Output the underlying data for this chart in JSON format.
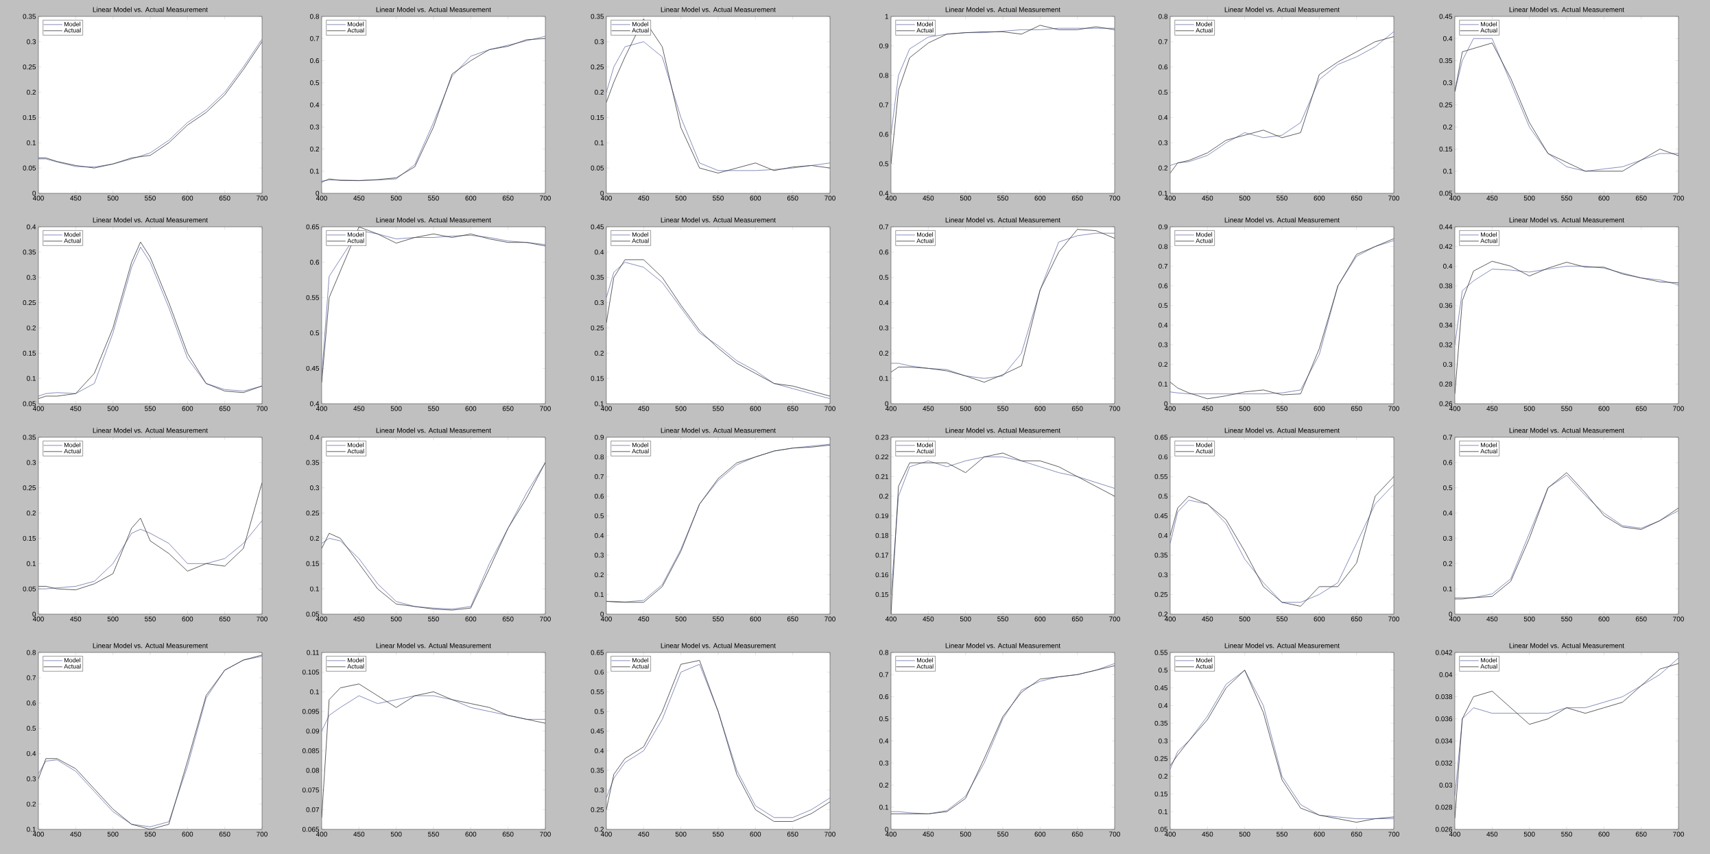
{
  "chart_data": [
    {
      "type": "line",
      "title": "Linear Model vs. Actual Measurement",
      "x": [
        400,
        410,
        425,
        450,
        475,
        500,
        525,
        550,
        575,
        600,
        625,
        650,
        675,
        700
      ],
      "xlim": [
        400,
        700
      ],
      "xticks": [
        400,
        450,
        500,
        550,
        600,
        650,
        700
      ],
      "ylim": [
        0,
        0.35
      ],
      "yticks": [
        0,
        0.05,
        0.1,
        0.15,
        0.2,
        0.25,
        0.3,
        0.35
      ],
      "legend": "top left",
      "series": [
        {
          "name": "Model",
          "color": "#6670a8",
          "values": [
            0.068,
            0.068,
            0.062,
            0.053,
            0.052,
            0.058,
            0.068,
            0.08,
            0.105,
            0.14,
            0.165,
            0.2,
            0.25,
            0.305
          ]
        },
        {
          "name": "Actual",
          "color": "#333333",
          "values": [
            0.07,
            0.07,
            0.063,
            0.055,
            0.05,
            0.058,
            0.07,
            0.075,
            0.1,
            0.135,
            0.16,
            0.195,
            0.245,
            0.3
          ]
        }
      ]
    },
    {
      "type": "line",
      "title": "Linear Model vs. Actual Measurement",
      "x": [
        400,
        410,
        425,
        450,
        475,
        500,
        525,
        550,
        575,
        600,
        625,
        650,
        675,
        700
      ],
      "xlim": [
        400,
        700
      ],
      "xticks": [
        400,
        450,
        500,
        550,
        600,
        650,
        700
      ],
      "ylim": [
        0,
        0.8
      ],
      "yticks": [
        0,
        0.1,
        0.2,
        0.3,
        0.4,
        0.5,
        0.6,
        0.7,
        0.8
      ],
      "legend": "top left",
      "series": [
        {
          "name": "Model",
          "color": "#6670a8",
          "values": [
            0.055,
            0.06,
            0.06,
            0.058,
            0.06,
            0.065,
            0.13,
            0.32,
            0.53,
            0.62,
            0.65,
            0.67,
            0.69,
            0.71
          ]
        },
        {
          "name": "Actual",
          "color": "#333333",
          "values": [
            0.05,
            0.065,
            0.058,
            0.057,
            0.062,
            0.07,
            0.12,
            0.3,
            0.54,
            0.6,
            0.65,
            0.665,
            0.695,
            0.7
          ]
        }
      ]
    },
    {
      "type": "line",
      "title": "Linear Model vs. Actual Measurement",
      "x": [
        400,
        410,
        425,
        450,
        475,
        500,
        525,
        550,
        575,
        600,
        625,
        650,
        675,
        700
      ],
      "xlim": [
        400,
        700
      ],
      "xticks": [
        400,
        450,
        500,
        550,
        600,
        650,
        700
      ],
      "ylim": [
        0,
        0.35
      ],
      "yticks": [
        0,
        0.05,
        0.1,
        0.15,
        0.2,
        0.25,
        0.3,
        0.35
      ],
      "legend": "top left",
      "series": [
        {
          "name": "Model",
          "color": "#6670a8",
          "values": [
            0.2,
            0.25,
            0.29,
            0.3,
            0.27,
            0.15,
            0.06,
            0.045,
            0.045,
            0.045,
            0.047,
            0.05,
            0.055,
            0.06
          ]
        },
        {
          "name": "Actual",
          "color": "#333333",
          "values": [
            0.18,
            0.22,
            0.27,
            0.345,
            0.29,
            0.13,
            0.05,
            0.04,
            0.05,
            0.06,
            0.045,
            0.052,
            0.055,
            0.05
          ]
        }
      ]
    },
    {
      "type": "line",
      "title": "Linear Model vs. Actual Measurement",
      "x": [
        400,
        410,
        425,
        450,
        475,
        500,
        525,
        550,
        575,
        600,
        625,
        650,
        675,
        700
      ],
      "xlim": [
        400,
        700
      ],
      "xticks": [
        400,
        450,
        500,
        550,
        600,
        650,
        700
      ],
      "ylim": [
        0.4,
        1
      ],
      "yticks": [
        0.4,
        0.5,
        0.6,
        0.7,
        0.8,
        0.9,
        1
      ],
      "legend": "top left",
      "series": [
        {
          "name": "Model",
          "color": "#6670a8",
          "values": [
            0.6,
            0.8,
            0.89,
            0.93,
            0.94,
            0.945,
            0.945,
            0.95,
            0.955,
            0.955,
            0.96,
            0.96,
            0.96,
            0.96
          ]
        },
        {
          "name": "Actual",
          "color": "#333333",
          "values": [
            0.5,
            0.75,
            0.86,
            0.91,
            0.94,
            0.945,
            0.948,
            0.948,
            0.94,
            0.97,
            0.955,
            0.955,
            0.965,
            0.955
          ]
        }
      ]
    },
    {
      "type": "line",
      "title": "Linear Model vs. Actual Measurement",
      "x": [
        400,
        410,
        425,
        450,
        475,
        500,
        525,
        550,
        575,
        600,
        625,
        650,
        675,
        700
      ],
      "xlim": [
        400,
        700
      ],
      "xticks": [
        400,
        450,
        500,
        550,
        600,
        650,
        700
      ],
      "ylim": [
        0.1,
        0.8
      ],
      "yticks": [
        0.1,
        0.2,
        0.3,
        0.4,
        0.5,
        0.6,
        0.7,
        0.8
      ],
      "legend": "top left",
      "series": [
        {
          "name": "Model",
          "color": "#6670a8",
          "values": [
            0.21,
            0.22,
            0.225,
            0.25,
            0.3,
            0.34,
            0.32,
            0.33,
            0.38,
            0.55,
            0.61,
            0.64,
            0.68,
            0.74
          ]
        },
        {
          "name": "Actual",
          "color": "#333333",
          "values": [
            0.18,
            0.22,
            0.23,
            0.26,
            0.31,
            0.33,
            0.35,
            0.32,
            0.34,
            0.57,
            0.62,
            0.66,
            0.7,
            0.72
          ]
        }
      ]
    },
    {
      "type": "line",
      "title": "Linear Model vs. Actual Measurement",
      "x": [
        400,
        410,
        425,
        450,
        475,
        500,
        525,
        550,
        575,
        600,
        625,
        650,
        675,
        700
      ],
      "xlim": [
        400,
        700
      ],
      "xticks": [
        400,
        450,
        500,
        550,
        600,
        650,
        700
      ],
      "ylim": [
        0.05,
        0.45
      ],
      "yticks": [
        0.05,
        0.1,
        0.15,
        0.2,
        0.25,
        0.3,
        0.35,
        0.4,
        0.45
      ],
      "legend": "top left",
      "series": [
        {
          "name": "Model",
          "color": "#6670a8",
          "values": [
            0.28,
            0.35,
            0.4,
            0.4,
            0.3,
            0.2,
            0.14,
            0.11,
            0.1,
            0.105,
            0.11,
            0.125,
            0.14,
            0.14
          ]
        },
        {
          "name": "Actual",
          "color": "#333333",
          "values": [
            0.28,
            0.37,
            null,
            0.39,
            0.31,
            0.21,
            0.14,
            0.12,
            0.1,
            0.1,
            0.1,
            0.125,
            0.15,
            0.135
          ]
        }
      ]
    },
    {
      "type": "line",
      "title": "Linear Model vs. Actual Measurement",
      "x": [
        400,
        410,
        425,
        450,
        475,
        500,
        525,
        537,
        550,
        575,
        600,
        625,
        650,
        675,
        700
      ],
      "xlim": [
        400,
        700
      ],
      "xticks": [
        400,
        450,
        500,
        550,
        600,
        650,
        700
      ],
      "ylim": [
        0.05,
        0.4
      ],
      "yticks": [
        0.05,
        0.1,
        0.15,
        0.2,
        0.25,
        0.3,
        0.35,
        0.4
      ],
      "legend": "top left",
      "series": [
        {
          "name": "Model",
          "color": "#6670a8",
          "values": [
            0.065,
            0.07,
            0.072,
            0.07,
            0.09,
            0.19,
            0.32,
            0.36,
            0.33,
            0.24,
            0.14,
            0.09,
            0.078,
            0.075,
            0.085
          ]
        },
        {
          "name": "Actual",
          "color": "#333333",
          "values": [
            0.06,
            0.065,
            0.065,
            0.07,
            0.11,
            0.2,
            0.33,
            0.37,
            0.34,
            0.25,
            0.15,
            0.09,
            0.075,
            0.072,
            0.085
          ]
        }
      ]
    },
    {
      "type": "line",
      "title": "Linear Model vs. Actual Measurement",
      "x": [
        400,
        410,
        425,
        450,
        475,
        500,
        525,
        550,
        575,
        600,
        625,
        650,
        675,
        700
      ],
      "xlim": [
        400,
        700
      ],
      "xticks": [
        400,
        450,
        500,
        550,
        600,
        650,
        700
      ],
      "ylim": [
        0.4,
        0.65
      ],
      "yticks": [
        0.4,
        0.45,
        0.5,
        0.55,
        0.6,
        0.65
      ],
      "legend": "top left",
      "series": [
        {
          "name": "Model",
          "color": "#6670a8",
          "values": [
            0.44,
            0.58,
            null,
            0.645,
            0.64,
            0.633,
            0.635,
            0.635,
            0.637,
            0.638,
            0.635,
            0.63,
            0.628,
            0.625
          ]
        },
        {
          "name": "Actual",
          "color": "#333333",
          "values": [
            0.43,
            0.55,
            null,
            0.65,
            0.64,
            0.627,
            0.635,
            0.64,
            0.635,
            0.64,
            0.633,
            0.628,
            0.628,
            0.623
          ]
        }
      ]
    },
    {
      "type": "line",
      "title": "Linear Model vs. Actual Measurement",
      "x": [
        400,
        410,
        425,
        450,
        475,
        500,
        525,
        550,
        575,
        600,
        625,
        650,
        675,
        700
      ],
      "xlim": [
        400,
        700
      ],
      "xticks": [
        400,
        450,
        500,
        550,
        600,
        650,
        700
      ],
      "ylim": [
        0.1,
        0.45
      ],
      "yticks": [
        0.1,
        0.15,
        0.2,
        0.25,
        0.3,
        0.35,
        0.4,
        0.45
      ],
      "legend": "top left",
      "series": [
        {
          "name": "Model",
          "color": "#6670a8",
          "values": [
            0.31,
            0.36,
            0.38,
            0.37,
            0.34,
            0.29,
            0.24,
            0.215,
            0.185,
            0.165,
            0.14,
            0.13,
            0.12,
            0.11
          ]
        },
        {
          "name": "Actual",
          "color": "#333333",
          "values": [
            0.26,
            0.35,
            0.385,
            0.385,
            0.35,
            0.295,
            0.245,
            0.21,
            0.18,
            0.16,
            0.14,
            0.135,
            0.125,
            0.115
          ]
        }
      ]
    },
    {
      "type": "line",
      "title": "Linear Model vs. Actual Measurement",
      "x": [
        400,
        410,
        425,
        450,
        475,
        500,
        525,
        550,
        575,
        600,
        625,
        650,
        675,
        700
      ],
      "xlim": [
        400,
        700
      ],
      "xticks": [
        400,
        450,
        500,
        550,
        600,
        650,
        700
      ],
      "ylim": [
        0,
        0.7
      ],
      "yticks": [
        0,
        0.1,
        0.2,
        0.3,
        0.4,
        0.5,
        0.6,
        0.7
      ],
      "legend": "top left",
      "series": [
        {
          "name": "Model",
          "color": "#6670a8",
          "values": [
            0.16,
            0.16,
            0.15,
            0.14,
            0.135,
            0.11,
            0.1,
            0.11,
            0.2,
            0.45,
            0.64,
            0.665,
            0.675,
            0.675
          ]
        },
        {
          "name": "Actual",
          "color": "#333333",
          "values": [
            0.125,
            0.145,
            0.145,
            0.14,
            0.13,
            0.11,
            0.085,
            0.115,
            0.15,
            0.45,
            0.6,
            0.69,
            0.685,
            0.655
          ]
        }
      ]
    },
    {
      "type": "line",
      "title": "Linear Model vs. Actual Measurement",
      "x": [
        400,
        410,
        425,
        450,
        475,
        500,
        525,
        550,
        575,
        600,
        625,
        650,
        675,
        700
      ],
      "xlim": [
        400,
        700
      ],
      "xticks": [
        400,
        450,
        500,
        550,
        600,
        650,
        700
      ],
      "ylim": [
        0,
        0.9
      ],
      "yticks": [
        0,
        0.1,
        0.2,
        0.3,
        0.4,
        0.5,
        0.6,
        0.7,
        0.8,
        0.9
      ],
      "legend": "top left",
      "series": [
        {
          "name": "Model",
          "color": "#6670a8",
          "values": [
            0.06,
            0.055,
            0.05,
            0.05,
            0.05,
            0.05,
            0.05,
            0.055,
            0.07,
            0.25,
            0.6,
            0.75,
            0.8,
            0.83
          ]
        },
        {
          "name": "Actual",
          "color": "#333333",
          "values": [
            0.11,
            0.08,
            0.055,
            0.025,
            0.04,
            0.06,
            0.07,
            0.045,
            0.05,
            0.28,
            0.6,
            0.76,
            0.8,
            0.84
          ]
        }
      ]
    },
    {
      "type": "line",
      "title": "Linear Model vs. Actual Measurement",
      "x": [
        400,
        410,
        425,
        450,
        475,
        500,
        525,
        550,
        575,
        600,
        625,
        650,
        675,
        700
      ],
      "xlim": [
        400,
        700
      ],
      "xticks": [
        400,
        450,
        500,
        550,
        600,
        650,
        700
      ],
      "ylim": [
        0.26,
        0.44
      ],
      "yticks": [
        0.26,
        0.28,
        0.3,
        0.32,
        0.34,
        0.36,
        0.38,
        0.4,
        0.42,
        0.44
      ],
      "legend": "top left",
      "series": [
        {
          "name": "Model",
          "color": "#6670a8",
          "values": [
            0.32,
            0.375,
            0.385,
            0.397,
            0.396,
            0.394,
            0.397,
            0.4,
            0.4,
            0.398,
            0.393,
            0.388,
            0.386,
            0.381
          ]
        },
        {
          "name": "Actual",
          "color": "#333333",
          "values": [
            0.27,
            0.365,
            0.395,
            0.405,
            0.4,
            0.39,
            0.398,
            0.404,
            0.399,
            0.399,
            0.392,
            0.388,
            0.384,
            0.383
          ]
        }
      ]
    },
    {
      "type": "line",
      "title": "Linear Model vs. Actual Measurement",
      "x": [
        400,
        410,
        425,
        450,
        475,
        500,
        525,
        537,
        550,
        575,
        600,
        625,
        650,
        675,
        700
      ],
      "xlim": [
        400,
        700
      ],
      "xticks": [
        400,
        450,
        500,
        550,
        600,
        650,
        700
      ],
      "ylim": [
        0,
        0.35
      ],
      "yticks": [
        0,
        0.05,
        0.1,
        0.15,
        0.2,
        0.25,
        0.3,
        0.35
      ],
      "legend": "top left",
      "series": [
        {
          "name": "Model",
          "color": "#6670a8",
          "values": [
            0.05,
            0.05,
            0.052,
            0.055,
            0.065,
            0.1,
            0.16,
            0.168,
            0.16,
            0.14,
            0.1,
            0.1,
            0.11,
            0.14,
            0.185
          ]
        },
        {
          "name": "Actual",
          "color": "#333333",
          "values": [
            0.055,
            0.055,
            0.05,
            0.048,
            0.06,
            0.08,
            0.17,
            0.19,
            0.145,
            0.12,
            0.085,
            0.1,
            0.095,
            0.13,
            0.26
          ]
        }
      ]
    },
    {
      "type": "line",
      "title": "Linear Model vs. Actual Measurement",
      "x": [
        400,
        410,
        425,
        450,
        475,
        500,
        525,
        550,
        575,
        600,
        625,
        650,
        675,
        700
      ],
      "xlim": [
        400,
        700
      ],
      "xticks": [
        400,
        450,
        500,
        550,
        600,
        650,
        700
      ],
      "ylim": [
        0.05,
        0.4
      ],
      "yticks": [
        0.05,
        0.1,
        0.15,
        0.2,
        0.25,
        0.3,
        0.35,
        0.4
      ],
      "legend": "top left",
      "series": [
        {
          "name": "Model",
          "color": "#6670a8",
          "values": [
            0.19,
            0.2,
            0.195,
            0.16,
            0.11,
            0.075,
            0.065,
            0.062,
            0.06,
            0.065,
            0.15,
            0.22,
            0.29,
            0.35
          ]
        },
        {
          "name": "Actual",
          "color": "#333333",
          "values": [
            0.18,
            0.21,
            0.2,
            0.15,
            0.1,
            0.07,
            0.065,
            0.06,
            0.058,
            0.062,
            0.14,
            0.22,
            0.28,
            0.35
          ]
        }
      ]
    },
    {
      "type": "line",
      "title": "Linear Model vs. Actual Measurement",
      "x": [
        400,
        410,
        425,
        450,
        475,
        500,
        525,
        550,
        575,
        600,
        625,
        650,
        675,
        700
      ],
      "xlim": [
        400,
        700
      ],
      "xticks": [
        400,
        450,
        500,
        550,
        600,
        650,
        700
      ],
      "ylim": [
        0,
        0.9
      ],
      "yticks": [
        0,
        0.1,
        0.2,
        0.3,
        0.4,
        0.5,
        0.6,
        0.7,
        0.8,
        0.9
      ],
      "legend": "top left",
      "series": [
        {
          "name": "Model",
          "color": "#6670a8",
          "values": [
            0.065,
            0.065,
            0.062,
            0.07,
            0.15,
            0.33,
            0.56,
            0.68,
            0.76,
            0.8,
            0.83,
            0.845,
            0.855,
            0.865
          ]
        },
        {
          "name": "Actual",
          "color": "#333333",
          "values": [
            0.065,
            0.062,
            0.06,
            0.06,
            0.14,
            0.32,
            0.56,
            0.69,
            0.77,
            0.8,
            0.83,
            0.845,
            0.85,
            0.86
          ]
        }
      ]
    },
    {
      "type": "line",
      "title": "Linear Model vs. Actual Measurement",
      "x": [
        400,
        410,
        425,
        450,
        475,
        500,
        525,
        550,
        575,
        600,
        625,
        650,
        675,
        700
      ],
      "xlim": [
        400,
        700
      ],
      "xticks": [
        400,
        450,
        500,
        550,
        600,
        650,
        700
      ],
      "ylim": [
        0.14,
        0.23
      ],
      "yticks": [
        0.15,
        0.16,
        0.17,
        0.18,
        0.19,
        0.2,
        0.21,
        0.22,
        0.23
      ],
      "legend": "top left",
      "series": [
        {
          "name": "Model",
          "color": "#6670a8",
          "values": [
            0.15,
            0.2,
            0.215,
            0.218,
            0.215,
            0.218,
            0.22,
            0.22,
            0.218,
            0.215,
            0.212,
            0.21,
            0.207,
            0.204
          ]
        },
        {
          "name": "Actual",
          "color": "#333333",
          "values": [
            0.14,
            0.205,
            0.217,
            null,
            0.217,
            0.212,
            0.22,
            0.222,
            0.218,
            0.218,
            0.215,
            0.21,
            0.205,
            0.2
          ]
        }
      ]
    },
    {
      "type": "line",
      "title": "Linear Model vs. Actual Measurement",
      "x": [
        400,
        410,
        425,
        450,
        475,
        500,
        525,
        550,
        575,
        600,
        625,
        650,
        675,
        700
      ],
      "xlim": [
        400,
        700
      ],
      "xticks": [
        400,
        450,
        500,
        550,
        600,
        650,
        700
      ],
      "ylim": [
        0.2,
        0.65
      ],
      "yticks": [
        0.2,
        0.25,
        0.3,
        0.35,
        0.4,
        0.45,
        0.5,
        0.55,
        0.6,
        0.65
      ],
      "legend": "top left",
      "series": [
        {
          "name": "Model",
          "color": "#6670a8",
          "values": [
            0.38,
            0.46,
            0.49,
            0.48,
            0.43,
            0.34,
            0.28,
            0.23,
            0.23,
            0.25,
            0.28,
            0.38,
            0.48,
            0.53
          ]
        },
        {
          "name": "Actual",
          "color": "#333333",
          "values": [
            0.4,
            0.47,
            0.5,
            0.48,
            0.44,
            0.36,
            0.27,
            0.23,
            0.22,
            0.27,
            0.27,
            0.33,
            0.5,
            0.55
          ]
        }
      ]
    },
    {
      "type": "line",
      "title": "Linear Model vs. Actual Measurement",
      "x": [
        400,
        410,
        425,
        450,
        475,
        500,
        525,
        550,
        575,
        600,
        625,
        650,
        675,
        700
      ],
      "xlim": [
        400,
        700
      ],
      "xticks": [
        400,
        450,
        500,
        550,
        600,
        650,
        700
      ],
      "ylim": [
        0,
        0.7
      ],
      "yticks": [
        0,
        0.1,
        0.2,
        0.3,
        0.4,
        0.5,
        0.6,
        0.7
      ],
      "legend": "top left",
      "series": [
        {
          "name": "Model",
          "color": "#6670a8",
          "values": [
            0.065,
            0.065,
            0.065,
            0.08,
            0.14,
            0.32,
            0.5,
            0.55,
            0.47,
            0.4,
            0.35,
            0.34,
            0.37,
            0.41
          ]
        },
        {
          "name": "Actual",
          "color": "#333333",
          "values": [
            0.06,
            0.06,
            0.065,
            0.07,
            0.13,
            0.3,
            0.5,
            0.56,
            0.48,
            0.39,
            0.345,
            0.335,
            0.37,
            0.42
          ]
        }
      ]
    },
    {
      "type": "line",
      "title": "Linear Model vs. Actual Measurement",
      "x": [
        400,
        410,
        425,
        450,
        475,
        500,
        525,
        550,
        575,
        600,
        625,
        650,
        675,
        700
      ],
      "xlim": [
        400,
        700
      ],
      "xticks": [
        400,
        450,
        500,
        550,
        600,
        650,
        700
      ],
      "ylim": [
        0.1,
        0.8
      ],
      "yticks": [
        0.1,
        0.2,
        0.3,
        0.4,
        0.5,
        0.6,
        0.7,
        0.8
      ],
      "legend": "top left",
      "series": [
        {
          "name": "Model",
          "color": "#6670a8",
          "values": [
            0.32,
            0.37,
            0.375,
            0.33,
            0.25,
            0.17,
            0.12,
            0.11,
            0.13,
            0.35,
            0.62,
            0.73,
            0.77,
            0.785
          ]
        },
        {
          "name": "Actual",
          "color": "#333333",
          "values": [
            0.3,
            0.38,
            0.38,
            0.34,
            0.26,
            0.18,
            0.12,
            0.1,
            0.12,
            0.37,
            0.63,
            0.73,
            0.77,
            0.79
          ]
        }
      ]
    },
    {
      "type": "line",
      "title": "Linear Model vs. Actual Measurement",
      "x": [
        400,
        410,
        425,
        450,
        475,
        500,
        525,
        550,
        575,
        600,
        625,
        650,
        675,
        700
      ],
      "xlim": [
        400,
        700
      ],
      "xticks": [
        400,
        450,
        500,
        550,
        600,
        650,
        700
      ],
      "ylim": [
        0.065,
        0.11
      ],
      "yticks": [
        0.065,
        0.07,
        0.075,
        0.08,
        0.085,
        0.09,
        0.095,
        0.1,
        0.105,
        0.11
      ],
      "legend": "top left",
      "series": [
        {
          "name": "Model",
          "color": "#6670a8",
          "values": [
            0.09,
            0.094,
            0.096,
            0.099,
            0.097,
            0.098,
            0.099,
            0.099,
            0.098,
            0.096,
            0.095,
            0.094,
            0.093,
            0.093
          ]
        },
        {
          "name": "Actual",
          "color": "#333333",
          "values": [
            0.068,
            0.098,
            0.101,
            0.102,
            0.099,
            0.096,
            0.099,
            0.1,
            0.098,
            0.097,
            0.096,
            0.094,
            0.093,
            0.092
          ]
        }
      ]
    },
    {
      "type": "line",
      "title": "Linear Model vs. Actual Measurement",
      "x": [
        400,
        410,
        425,
        450,
        475,
        500,
        525,
        550,
        575,
        600,
        625,
        650,
        675,
        700
      ],
      "xlim": [
        400,
        700
      ],
      "xticks": [
        400,
        450,
        500,
        550,
        600,
        650,
        700
      ],
      "ylim": [
        0.2,
        0.65
      ],
      "yticks": [
        0.2,
        0.25,
        0.3,
        0.35,
        0.4,
        0.45,
        0.5,
        0.55,
        0.6,
        0.65
      ],
      "legend": "top left",
      "series": [
        {
          "name": "Model",
          "color": "#6670a8",
          "values": [
            0.28,
            0.33,
            0.37,
            0.4,
            0.48,
            0.6,
            0.62,
            0.5,
            0.35,
            0.26,
            0.23,
            0.23,
            0.25,
            0.28
          ]
        },
        {
          "name": "Actual",
          "color": "#333333",
          "values": [
            0.25,
            0.34,
            0.38,
            0.41,
            0.5,
            0.62,
            0.63,
            0.5,
            0.34,
            0.25,
            0.22,
            0.22,
            0.24,
            0.27
          ]
        }
      ]
    },
    {
      "type": "line",
      "title": "Linear Model vs. Actual Measurement",
      "x": [
        400,
        410,
        425,
        450,
        475,
        500,
        525,
        550,
        575,
        600,
        625,
        650,
        675,
        700
      ],
      "xlim": [
        400,
        700
      ],
      "xticks": [
        400,
        450,
        500,
        550,
        600,
        650,
        700
      ],
      "ylim": [
        0,
        0.8
      ],
      "yticks": [
        0,
        0.1,
        0.2,
        0.3,
        0.4,
        0.5,
        0.6,
        0.7,
        0.8
      ],
      "legend": "top left",
      "series": [
        {
          "name": "Model",
          "color": "#6670a8",
          "values": [
            0.08,
            0.08,
            0.075,
            0.07,
            0.085,
            0.15,
            0.3,
            0.5,
            0.63,
            0.67,
            0.69,
            0.7,
            0.72,
            0.75
          ]
        },
        {
          "name": "Actual",
          "color": "#333333",
          "values": [
            0.07,
            0.07,
            0.07,
            0.07,
            0.08,
            0.14,
            0.32,
            0.51,
            0.62,
            0.68,
            0.69,
            0.7,
            0.72,
            0.74
          ]
        }
      ]
    },
    {
      "type": "line",
      "title": "Linear Model vs. Actual Measurement",
      "x": [
        400,
        410,
        425,
        450,
        475,
        500,
        525,
        550,
        575,
        600,
        625,
        650,
        675,
        700
      ],
      "xlim": [
        400,
        700
      ],
      "xticks": [
        400,
        450,
        500,
        550,
        600,
        650,
        700
      ],
      "ylim": [
        0.05,
        0.55
      ],
      "yticks": [
        0.05,
        0.1,
        0.15,
        0.2,
        0.25,
        0.3,
        0.35,
        0.4,
        0.45,
        0.5,
        0.55
      ],
      "legend": "top left",
      "series": [
        {
          "name": "Model",
          "color": "#6670a8",
          "values": [
            0.22,
            0.27,
            0.3,
            0.37,
            0.46,
            0.5,
            0.4,
            0.2,
            0.12,
            0.09,
            0.085,
            0.08,
            0.08,
            0.08
          ]
        },
        {
          "name": "Actual",
          "color": "#333333",
          "values": [
            0.23,
            0.26,
            0.3,
            0.36,
            0.45,
            0.5,
            0.38,
            0.19,
            0.11,
            0.09,
            0.08,
            0.07,
            0.08,
            0.085
          ]
        }
      ]
    },
    {
      "type": "line",
      "title": "Linear Model vs. Actual Measurement",
      "x": [
        400,
        410,
        425,
        450,
        475,
        500,
        525,
        550,
        575,
        600,
        625,
        650,
        675,
        700
      ],
      "xlim": [
        400,
        700
      ],
      "xticks": [
        400,
        450,
        500,
        550,
        600,
        650,
        700
      ],
      "ylim": [
        0.026,
        0.042
      ],
      "yticks": [
        0.026,
        0.028,
        0.03,
        0.032,
        0.034,
        0.036,
        0.038,
        0.04,
        0.042
      ],
      "legend": "top left",
      "series": [
        {
          "name": "Model",
          "color": "#6670a8",
          "values": [
            0.029,
            0.036,
            0.037,
            0.0365,
            0.0365,
            0.0365,
            0.0365,
            0.037,
            0.037,
            0.0375,
            0.038,
            0.039,
            0.04,
            0.0415
          ]
        },
        {
          "name": "Actual",
          "color": "#333333",
          "values": [
            0.027,
            0.036,
            0.038,
            0.0385,
            0.037,
            0.0355,
            0.036,
            0.037,
            0.0365,
            0.037,
            0.0375,
            0.039,
            0.0405,
            0.041
          ]
        }
      ]
    }
  ]
}
